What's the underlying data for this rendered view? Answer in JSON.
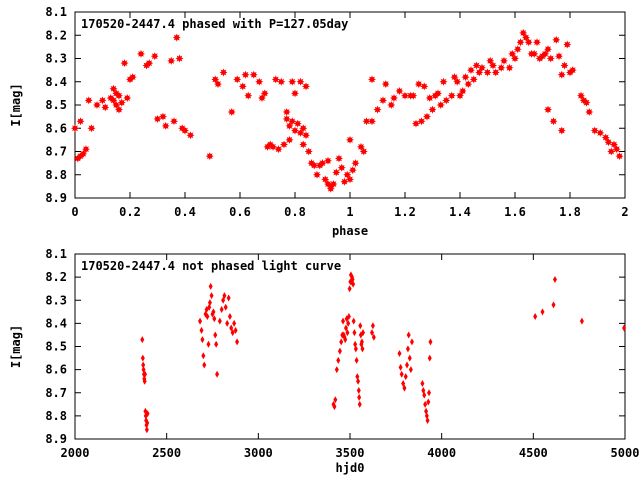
{
  "chart_data": [
    {
      "type": "scatter",
      "title": "170520-2447.4 phased with P=127.05day",
      "xlabel": "phase",
      "ylabel": "I[mag]",
      "xlim": [
        0,
        2
      ],
      "ylim": [
        8.9,
        8.1
      ],
      "y_inverted": true,
      "grid": false,
      "xticks": [
        0,
        0.2,
        0.4,
        0.6,
        0.8,
        1,
        1.2,
        1.4,
        1.6,
        1.8,
        2
      ],
      "xtick_labels": [
        "0",
        "0.2",
        "0.4",
        "0.6",
        "0.8",
        "1",
        "1.2",
        "1.4",
        "1.6",
        "1.8",
        "2"
      ],
      "yticks": [
        8.1,
        8.2,
        8.3,
        8.4,
        8.5,
        8.6,
        8.7,
        8.8,
        8.9
      ],
      "ytick_labels": [
        "8.1",
        "8.2",
        "8.3",
        "8.4",
        "8.5",
        "8.6",
        "8.7",
        "8.8",
        "8.9"
      ],
      "marker_color": "#ff0000",
      "marker": "filled-star",
      "points": [
        [
          0.0,
          8.6
        ],
        [
          0.01,
          8.73
        ],
        [
          0.02,
          8.72
        ],
        [
          0.02,
          8.57
        ],
        [
          0.03,
          8.71
        ],
        [
          0.04,
          8.69
        ],
        [
          0.05,
          8.48
        ],
        [
          0.06,
          8.6
        ],
        [
          0.08,
          8.5
        ],
        [
          0.1,
          8.48
        ],
        [
          0.11,
          8.51
        ],
        [
          0.13,
          8.47
        ],
        [
          0.14,
          8.43
        ],
        [
          0.14,
          8.48
        ],
        [
          0.15,
          8.45
        ],
        [
          0.15,
          8.5
        ],
        [
          0.16,
          8.46
        ],
        [
          0.16,
          8.52
        ],
        [
          0.17,
          8.49
        ],
        [
          0.18,
          8.32
        ],
        [
          0.19,
          8.47
        ],
        [
          0.2,
          8.39
        ],
        [
          0.21,
          8.38
        ],
        [
          0.24,
          8.28
        ],
        [
          0.26,
          8.33
        ],
        [
          0.27,
          8.32
        ],
        [
          0.29,
          8.29
        ],
        [
          0.3,
          8.56
        ],
        [
          0.32,
          8.55
        ],
        [
          0.33,
          8.59
        ],
        [
          0.35,
          8.31
        ],
        [
          0.36,
          8.57
        ],
        [
          0.37,
          8.21
        ],
        [
          0.38,
          8.3
        ],
        [
          0.39,
          8.6
        ],
        [
          0.4,
          8.61
        ],
        [
          0.42,
          8.63
        ],
        [
          0.49,
          8.72
        ],
        [
          0.51,
          8.39
        ],
        [
          0.52,
          8.41
        ],
        [
          0.54,
          8.36
        ],
        [
          0.57,
          8.53
        ],
        [
          0.59,
          8.39
        ],
        [
          0.61,
          8.42
        ],
        [
          0.62,
          8.37
        ],
        [
          0.63,
          8.46
        ],
        [
          0.65,
          8.37
        ],
        [
          0.67,
          8.4
        ],
        [
          0.68,
          8.47
        ],
        [
          0.69,
          8.45
        ],
        [
          0.7,
          8.68
        ],
        [
          0.71,
          8.67
        ],
        [
          0.72,
          8.68
        ],
        [
          0.73,
          8.39
        ],
        [
          0.74,
          8.69
        ],
        [
          0.75,
          8.4
        ],
        [
          0.76,
          8.67
        ],
        [
          0.77,
          8.53
        ],
        [
          0.77,
          8.56
        ],
        [
          0.78,
          8.59
        ],
        [
          0.78,
          8.65
        ],
        [
          0.79,
          8.57
        ],
        [
          0.79,
          8.4
        ],
        [
          0.8,
          8.61
        ],
        [
          0.8,
          8.45
        ],
        [
          0.81,
          8.58
        ],
        [
          0.82,
          8.62
        ],
        [
          0.82,
          8.4
        ],
        [
          0.83,
          8.6
        ],
        [
          0.83,
          8.67
        ],
        [
          0.84,
          8.63
        ],
        [
          0.84,
          8.42
        ],
        [
          0.85,
          8.7
        ],
        [
          0.86,
          8.75
        ],
        [
          0.87,
          8.76
        ],
        [
          0.88,
          8.8
        ],
        [
          0.89,
          8.76
        ],
        [
          0.9,
          8.75
        ],
        [
          0.91,
          8.82
        ],
        [
          0.92,
          8.84
        ],
        [
          0.92,
          8.74
        ],
        [
          0.93,
          8.85
        ],
        [
          0.93,
          8.86
        ],
        [
          0.94,
          8.84
        ],
        [
          0.95,
          8.79
        ],
        [
          0.96,
          8.73
        ],
        [
          0.97,
          8.77
        ],
        [
          0.98,
          8.83
        ],
        [
          0.99,
          8.8
        ],
        [
          1.0,
          8.82
        ],
        [
          1.0,
          8.65
        ],
        [
          1.01,
          8.78
        ],
        [
          1.02,
          8.75
        ],
        [
          1.04,
          8.68
        ],
        [
          1.05,
          8.7
        ],
        [
          1.06,
          8.57
        ],
        [
          1.08,
          8.39
        ],
        [
          1.08,
          8.57
        ],
        [
          1.1,
          8.52
        ],
        [
          1.12,
          8.48
        ],
        [
          1.13,
          8.41
        ],
        [
          1.15,
          8.5
        ],
        [
          1.16,
          8.47
        ],
        [
          1.18,
          8.44
        ],
        [
          1.2,
          8.46
        ],
        [
          1.22,
          8.46
        ],
        [
          1.23,
          8.46
        ],
        [
          1.24,
          8.58
        ],
        [
          1.25,
          8.41
        ],
        [
          1.26,
          8.57
        ],
        [
          1.27,
          8.42
        ],
        [
          1.28,
          8.55
        ],
        [
          1.29,
          8.47
        ],
        [
          1.3,
          8.52
        ],
        [
          1.31,
          8.46
        ],
        [
          1.32,
          8.45
        ],
        [
          1.33,
          8.5
        ],
        [
          1.34,
          8.4
        ],
        [
          1.35,
          8.48
        ],
        [
          1.37,
          8.46
        ],
        [
          1.38,
          8.38
        ],
        [
          1.39,
          8.4
        ],
        [
          1.4,
          8.46
        ],
        [
          1.41,
          8.44
        ],
        [
          1.42,
          8.38
        ],
        [
          1.43,
          8.41
        ],
        [
          1.44,
          8.35
        ],
        [
          1.45,
          8.39
        ],
        [
          1.46,
          8.33
        ],
        [
          1.47,
          8.36
        ],
        [
          1.48,
          8.34
        ],
        [
          1.5,
          8.36
        ],
        [
          1.51,
          8.31
        ],
        [
          1.52,
          8.33
        ],
        [
          1.53,
          8.36
        ],
        [
          1.55,
          8.34
        ],
        [
          1.56,
          8.31
        ],
        [
          1.58,
          8.34
        ],
        [
          1.59,
          8.28
        ],
        [
          1.6,
          8.3
        ],
        [
          1.61,
          8.26
        ],
        [
          1.62,
          8.23
        ],
        [
          1.63,
          8.19
        ],
        [
          1.64,
          8.21
        ],
        [
          1.65,
          8.23
        ],
        [
          1.66,
          8.28
        ],
        [
          1.67,
          8.28
        ],
        [
          1.68,
          8.23
        ],
        [
          1.69,
          8.3
        ],
        [
          1.7,
          8.29
        ],
        [
          1.71,
          8.28
        ],
        [
          1.72,
          8.26
        ],
        [
          1.72,
          8.52
        ],
        [
          1.73,
          8.3
        ],
        [
          1.74,
          8.57
        ],
        [
          1.75,
          8.22
        ],
        [
          1.76,
          8.29
        ],
        [
          1.77,
          8.37
        ],
        [
          1.77,
          8.61
        ],
        [
          1.78,
          8.33
        ],
        [
          1.79,
          8.24
        ],
        [
          1.8,
          8.36
        ],
        [
          1.81,
          8.35
        ],
        [
          1.84,
          8.46
        ],
        [
          1.85,
          8.48
        ],
        [
          1.86,
          8.49
        ],
        [
          1.87,
          8.53
        ],
        [
          1.89,
          8.61
        ],
        [
          1.91,
          8.62
        ],
        [
          1.93,
          8.64
        ],
        [
          1.94,
          8.66
        ],
        [
          1.95,
          8.7
        ],
        [
          1.96,
          8.67
        ],
        [
          1.97,
          8.69
        ],
        [
          1.98,
          8.72
        ]
      ]
    },
    {
      "type": "scatter",
      "title": "170520-2447.4 not phased light curve",
      "xlabel": "hjd0",
      "ylabel": "I[mag]",
      "xlim": [
        2000,
        5000
      ],
      "ylim": [
        8.9,
        8.1
      ],
      "y_inverted": true,
      "grid": false,
      "xticks": [
        2000,
        2500,
        3000,
        3500,
        4000,
        4500,
        5000
      ],
      "xtick_labels": [
        "2000",
        "2500",
        "3000",
        "3500",
        "4000",
        "4500",
        "5000"
      ],
      "yticks": [
        8.1,
        8.2,
        8.3,
        8.4,
        8.5,
        8.6,
        8.7,
        8.8,
        8.9
      ],
      "ytick_labels": [
        "8.1",
        "8.2",
        "8.3",
        "8.4",
        "8.5",
        "8.6",
        "8.7",
        "8.8",
        "8.9"
      ],
      "marker_color": "#ff0000",
      "marker": "filled-diamond",
      "points": [
        [
          2367,
          8.47
        ],
        [
          2370,
          8.55
        ],
        [
          2372,
          8.58
        ],
        [
          2374,
          8.6
        ],
        [
          2376,
          8.62
        ],
        [
          2378,
          8.64
        ],
        [
          2380,
          8.65
        ],
        [
          2382,
          8.62
        ],
        [
          2384,
          8.78
        ],
        [
          2386,
          8.8
        ],
        [
          2388,
          8.82
        ],
        [
          2390,
          8.84
        ],
        [
          2392,
          8.86
        ],
        [
          2394,
          8.83
        ],
        [
          2396,
          8.79
        ],
        [
          2682,
          8.39
        ],
        [
          2690,
          8.43
        ],
        [
          2695,
          8.47
        ],
        [
          2700,
          8.54
        ],
        [
          2705,
          8.58
        ],
        [
          2712,
          8.36
        ],
        [
          2718,
          8.34
        ],
        [
          2722,
          8.37
        ],
        [
          2728,
          8.49
        ],
        [
          2732,
          8.33
        ],
        [
          2736,
          8.31
        ],
        [
          2740,
          8.24
        ],
        [
          2745,
          8.28
        ],
        [
          2750,
          8.36
        ],
        [
          2755,
          8.35
        ],
        [
          2760,
          8.38
        ],
        [
          2765,
          8.45
        ],
        [
          2770,
          8.49
        ],
        [
          2775,
          8.62
        ],
        [
          2790,
          8.39
        ],
        [
          2800,
          8.34
        ],
        [
          2808,
          8.3
        ],
        [
          2815,
          8.28
        ],
        [
          2822,
          8.33
        ],
        [
          2830,
          8.4
        ],
        [
          2838,
          8.29
        ],
        [
          2845,
          8.37
        ],
        [
          2852,
          8.42
        ],
        [
          2860,
          8.44
        ],
        [
          2868,
          8.4
        ],
        [
          2876,
          8.43
        ],
        [
          2884,
          8.48
        ],
        [
          3410,
          8.75
        ],
        [
          3415,
          8.76
        ],
        [
          3420,
          8.73
        ],
        [
          3428,
          8.6
        ],
        [
          3436,
          8.56
        ],
        [
          3445,
          8.52
        ],
        [
          3452,
          8.48
        ],
        [
          3458,
          8.45
        ],
        [
          3462,
          8.39
        ],
        [
          3466,
          8.45
        ],
        [
          3470,
          8.46
        ],
        [
          3474,
          8.47
        ],
        [
          3478,
          8.42
        ],
        [
          3482,
          8.38
        ],
        [
          3486,
          8.44
        ],
        [
          3490,
          8.4
        ],
        [
          3494,
          8.37
        ],
        [
          3498,
          8.25
        ],
        [
          3502,
          8.22
        ],
        [
          3505,
          8.19
        ],
        [
          3508,
          8.22
        ],
        [
          3511,
          8.2
        ],
        [
          3514,
          8.21
        ],
        [
          3517,
          8.23
        ],
        [
          3520,
          8.39
        ],
        [
          3524,
          8.44
        ],
        [
          3528,
          8.49
        ],
        [
          3532,
          8.51
        ],
        [
          3536,
          8.56
        ],
        [
          3540,
          8.63
        ],
        [
          3544,
          8.65
        ],
        [
          3548,
          8.69
        ],
        [
          3550,
          8.72
        ],
        [
          3553,
          8.75
        ],
        [
          3556,
          8.41
        ],
        [
          3559,
          8.45
        ],
        [
          3562,
          8.49
        ],
        [
          3565,
          8.48
        ],
        [
          3568,
          8.51
        ],
        [
          3571,
          8.44
        ],
        [
          3620,
          8.44
        ],
        [
          3625,
          8.41
        ],
        [
          3630,
          8.46
        ],
        [
          3770,
          8.53
        ],
        [
          3776,
          8.59
        ],
        [
          3782,
          8.62
        ],
        [
          3790,
          8.66
        ],
        [
          3797,
          8.68
        ],
        [
          3804,
          8.63
        ],
        [
          3811,
          8.58
        ],
        [
          3816,
          8.51
        ],
        [
          3820,
          8.45
        ],
        [
          3826,
          8.55
        ],
        [
          3832,
          8.6
        ],
        [
          3838,
          8.48
        ],
        [
          3895,
          8.66
        ],
        [
          3900,
          8.69
        ],
        [
          3905,
          8.71
        ],
        [
          3910,
          8.75
        ],
        [
          3915,
          8.78
        ],
        [
          3919,
          8.8
        ],
        [
          3923,
          8.82
        ],
        [
          3927,
          8.74
        ],
        [
          3931,
          8.7
        ],
        [
          3935,
          8.55
        ],
        [
          3939,
          8.48
        ],
        [
          4510,
          8.37
        ],
        [
          4550,
          8.35
        ],
        [
          4610,
          8.32
        ],
        [
          4618,
          8.21
        ],
        [
          4765,
          8.39
        ],
        [
          4995,
          8.42
        ]
      ]
    }
  ]
}
